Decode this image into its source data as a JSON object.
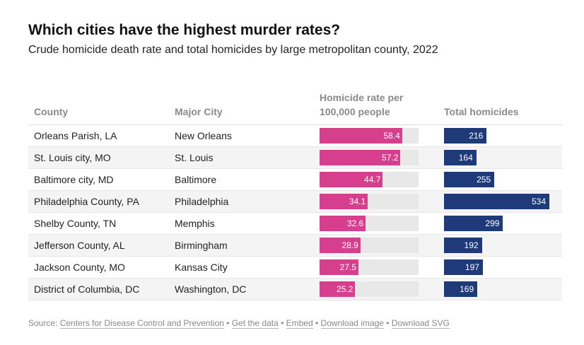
{
  "title": "Which cities have the highest murder rates?",
  "subtitle": "Crude homicide death rate and total homicides by large metropolitan county, 2022",
  "columns": {
    "county": "County",
    "city": "Major City",
    "rate_line1": "Homicide rate per",
    "rate_line2": "100,000 people",
    "total": "Total homicides"
  },
  "chart_data": {
    "type": "table",
    "title": "Which cities have the highest murder rates?",
    "subtitle": "Crude homicide death rate and total homicides by large metropolitan county, 2022",
    "rate_max": 70,
    "total_max": 534,
    "rows": [
      {
        "county": "Orleans Parish, LA",
        "city": "New Orleans",
        "rate": 58.4,
        "rate_label": "58.4",
        "total": 216,
        "total_label": "216"
      },
      {
        "county": "St. Louis city, MO",
        "city": "St. Louis",
        "rate": 57.2,
        "rate_label": "57.2",
        "total": 164,
        "total_label": "164"
      },
      {
        "county": "Baltimore city, MD",
        "city": "Baltimore",
        "rate": 44.7,
        "rate_label": "44.7",
        "total": 255,
        "total_label": "255"
      },
      {
        "county": "Philadelphia County, PA",
        "city": "Philadelphia",
        "rate": 34.1,
        "rate_label": "34.1",
        "total": 534,
        "total_label": "534"
      },
      {
        "county": "Shelby County, TN",
        "city": "Memphis",
        "rate": 32.6,
        "rate_label": "32.6",
        "total": 299,
        "total_label": "299"
      },
      {
        "county": "Jefferson County, AL",
        "city": "Birmingham",
        "rate": 28.9,
        "rate_label": "28.9",
        "total": 192,
        "total_label": "192"
      },
      {
        "county": "Jackson County, MO",
        "city": "Kansas City",
        "rate": 27.5,
        "rate_label": "27.5",
        "total": 197,
        "total_label": "197"
      },
      {
        "county": "District of Columbia, DC",
        "city": "Washington, DC",
        "rate": 25.2,
        "rate_label": "25.2",
        "total": 169,
        "total_label": "169"
      }
    ]
  },
  "footer": {
    "source_prefix": "Source: ",
    "source_link": "Centers for Disease Control and Prevention",
    "sep": " • ",
    "get_data": "Get the data",
    "embed": "Embed",
    "download_image": "Download image",
    "download_svg": "Download SVG"
  },
  "colors": {
    "rate_bar": "#d63f8e",
    "total_bar": "#1e3a78",
    "track": "#e8e8e8"
  }
}
